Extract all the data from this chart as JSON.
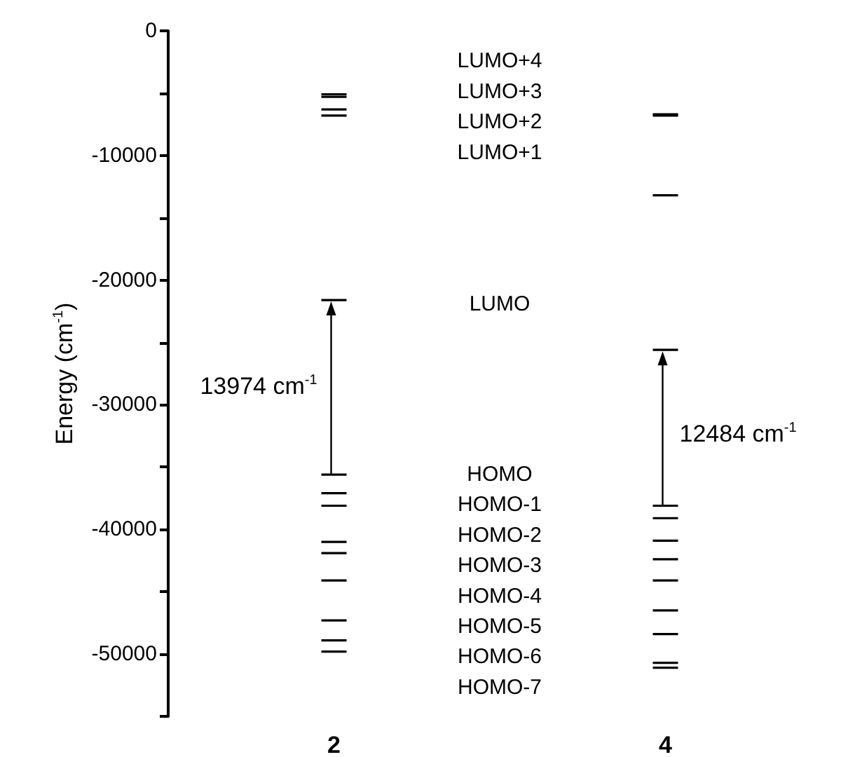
{
  "chart_data": {
    "type": "scatter",
    "ylabel": "Energy (cm$^{-1}$)",
    "categories": [
      "2",
      "4"
    ],
    "series": [
      {
        "color": "#000000",
        "x": [
          "2",
          "2",
          "2",
          "2",
          "2",
          "2",
          "2",
          "2",
          "2",
          "2",
          "2",
          "2",
          "2",
          "2"
        ],
        "values": [
          -5100,
          -5300,
          -6300,
          -6800,
          -21600,
          -35600,
          -37100,
          -38100,
          -41000,
          -41900,
          -44100,
          -47300,
          -48900,
          -49800
        ]
      },
      {
        "color": "#000000",
        "x": [
          "4",
          "4",
          "4",
          "4",
          "4",
          "4",
          "4",
          "4",
          "4",
          "4",
          "4",
          "4",
          "4"
        ],
        "values": [
          -6700,
          -6800,
          -13200,
          -25600,
          -38100,
          -39100,
          -40900,
          -42400,
          -44100,
          -46500,
          -48400,
          -50700,
          -51100
        ]
      }
    ],
    "ylim": [
      -55000,
      0
    ],
    "yticks": [
      0,
      {
        "value": -5000,
        "label": null
      },
      -10000,
      {
        "value": -15000,
        "label": null
      },
      -20000,
      {
        "value": -25000,
        "label": null
      },
      -30000,
      {
        "value": -35000,
        "label": null
      },
      -40000,
      {
        "value": -45000,
        "label": null
      },
      -50000,
      {
        "value": -55000,
        "label": null
      }
    ],
    "grid": false,
    "annotations": [
      "13974 cm$^{-1}$",
      "12484 cm$^{-1}$",
      "LUMO+4",
      "LUMO+3",
      "LUMO+2",
      "LUMO+1",
      "LUMO",
      "HOMO",
      "HOMO-1",
      "HOMO-2",
      "HOMO-3",
      "HOMO-4",
      "HOMO-5",
      "HOMO-6",
      "HOMO-7"
    ]
  }
}
